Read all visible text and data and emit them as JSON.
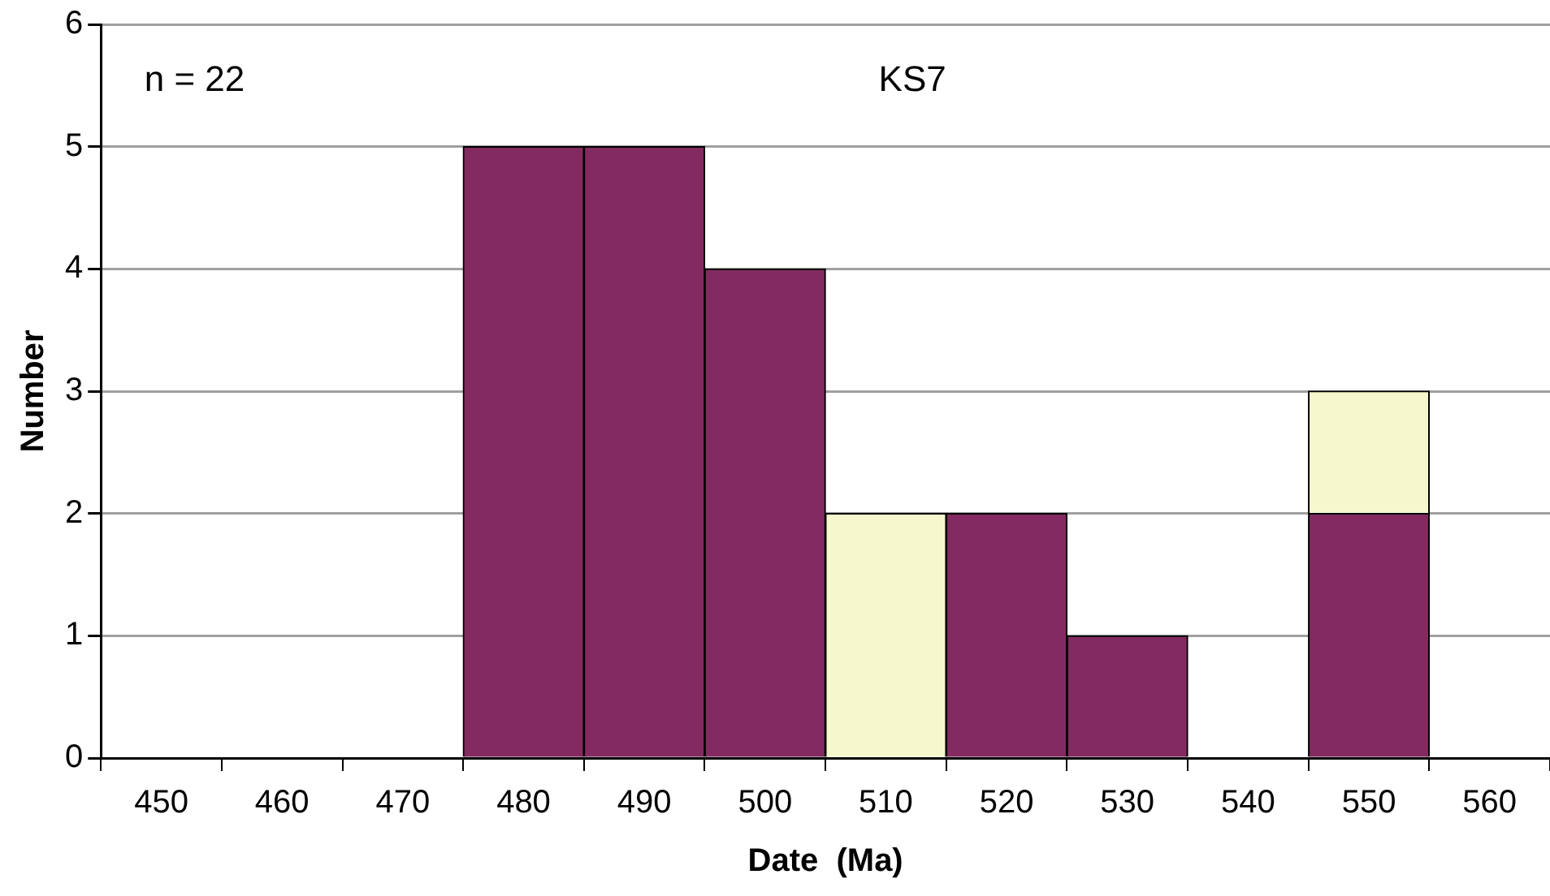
{
  "chart_data": {
    "type": "bar",
    "stacked": true,
    "xlabel": "Date  (Ma)",
    "ylabel": "Number",
    "categories": [
      "450",
      "460",
      "470",
      "480",
      "490",
      "500",
      "510",
      "520",
      "530",
      "540",
      "550",
      "560"
    ],
    "series": [
      {
        "color": "#832b60",
        "values": [
          null,
          null,
          null,
          5,
          5,
          4,
          null,
          2,
          1,
          null,
          2,
          null
        ]
      },
      {
        "color": "#f7f7cd",
        "values": [
          null,
          null,
          null,
          null,
          null,
          null,
          2,
          null,
          null,
          null,
          1,
          null
        ]
      }
    ],
    "ylim": [
      0,
      6
    ],
    "yticks": [
      0,
      1,
      2,
      3,
      4,
      5,
      6
    ],
    "grid": "y",
    "legend": false,
    "annotations": [
      "n = 22",
      "KS7"
    ]
  }
}
